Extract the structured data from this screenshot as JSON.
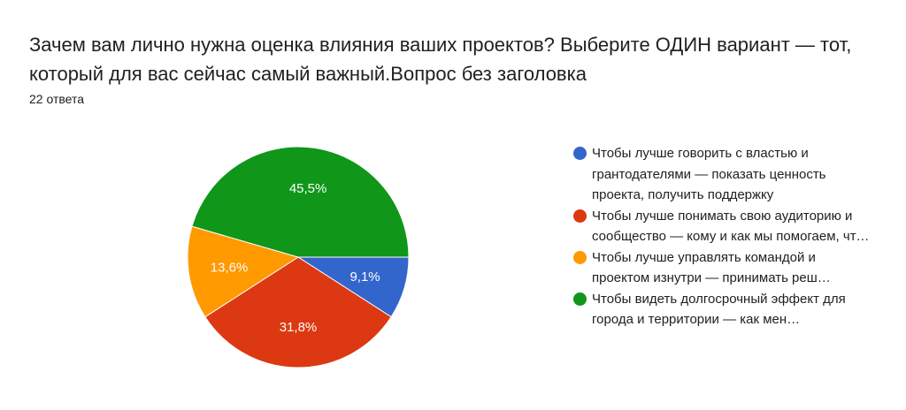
{
  "question": {
    "title": "Зачем вам лично нужна оценка влияния ваших проектов?  Выберите ОДИН вариант — тот, который для вас сейчас самый важный.Вопрос без заголовка",
    "response_count": "22 ответа"
  },
  "chart_data": {
    "type": "pie",
    "title": "Зачем вам лично нужна оценка влияния ваших проектов?  Выберите ОДИН вариант — тот, который для вас сейчас самый важный.Вопрос без заголовка",
    "total_responses": 22,
    "slices": [
      {
        "label": "Чтобы лучше говорить с властью и грантодателями — показать ценность проекта, получить поддержку",
        "value": 9.1,
        "display": "9,1%",
        "color": "#3366cc"
      },
      {
        "label": "Чтобы лучше понимать свою аудиторию и сообщество — кому и как мы помогаем, что меняется у лю…",
        "value": 31.8,
        "display": "31,8%",
        "color": "#dc3912"
      },
      {
        "label": "Чтобы лучше управлять командой и проектом изнутри — принимать реш…",
        "value": 13.6,
        "display": "13,6%",
        "color": "#ff9900"
      },
      {
        "label": "Чтобы видеть долгосрочный эффект для города и территории — как мен…",
        "value": 45.5,
        "display": "45,5%",
        "color": "#109618"
      }
    ],
    "legend_position": "right"
  }
}
